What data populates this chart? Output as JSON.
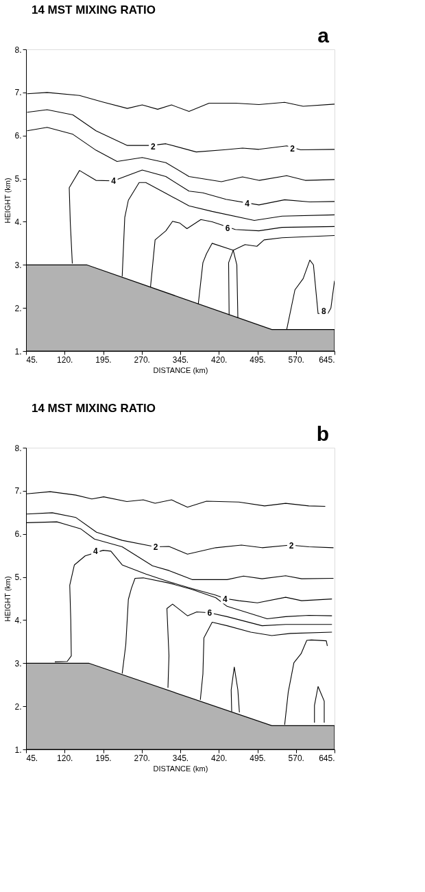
{
  "chart_data": [
    {
      "type": "line",
      "title": "14 MST  MIXING RATIO",
      "xlabel": "DISTANCE (km)",
      "ylabel": "HEIGHT (km)",
      "xlim": [
        45,
        645
      ],
      "ylim": [
        1,
        8
      ],
      "xticks": [
        {
          "value": 45,
          "label": "45."
        },
        {
          "value": 120,
          "label": "120."
        },
        {
          "value": 195,
          "label": "195."
        },
        {
          "value": 270,
          "label": "270."
        },
        {
          "value": 345,
          "label": "345."
        },
        {
          "value": 420,
          "label": "420."
        },
        {
          "value": 495,
          "label": "495."
        },
        {
          "value": 570,
          "label": "570."
        },
        {
          "value": 645,
          "label": "645."
        }
      ],
      "yticks": [
        {
          "value": 1,
          "label": "1."
        },
        {
          "value": 2,
          "label": "2."
        },
        {
          "value": 3,
          "label": "3."
        },
        {
          "value": 4,
          "label": "4."
        },
        {
          "value": 5,
          "label": "5."
        },
        {
          "value": 6,
          "label": "6."
        },
        {
          "value": 7,
          "label": "7."
        },
        {
          "value": 8,
          "label": "8."
        }
      ],
      "annotations": [
        "a",
        {
          "text": "2",
          "x": 292,
          "y": 5.74
        },
        {
          "text": "2",
          "x": 563,
          "y": 5.69
        },
        {
          "text": "4",
          "x": 215,
          "y": 4.95
        },
        {
          "text": "4",
          "x": 475,
          "y": 4.42
        },
        {
          "text": "6",
          "x": 437,
          "y": 3.84
        },
        {
          "text": "8",
          "x": 624,
          "y": 1.92
        }
      ],
      "series": [
        {
          "type": "area",
          "color": "#000000",
          "x": [
            45,
            163,
            523,
            645
          ],
          "values": [
            3.0,
            3.0,
            1.5,
            1.5
          ]
        },
        {
          "color": "#000000",
          "x": [
            47,
            86,
            149,
            194,
            242,
            271,
            301,
            328,
            362,
            401,
            453,
            498,
            548,
            584,
            645
          ],
          "values": [
            6.97,
            7.0,
            6.93,
            6.78,
            6.63,
            6.71,
            6.61,
            6.71,
            6.56,
            6.75,
            6.75,
            6.72,
            6.77,
            6.68,
            6.73
          ]
        },
        {
          "color": "#000000",
          "x": [
            47,
            86,
            136,
            181,
            242,
            289,
            317,
            376,
            430,
            466,
            498,
            552,
            579,
            645
          ],
          "values": [
            6.54,
            6.6,
            6.48,
            6.11,
            5.77,
            5.77,
            5.81,
            5.62,
            5.67,
            5.71,
            5.68,
            5.76,
            5.67,
            5.68
          ]
        },
        {
          "color": "#000000",
          "x": [
            47,
            86,
            136,
            181,
            222,
            271,
            317,
            362,
            425,
            466,
            498,
            552,
            588,
            645
          ],
          "values": [
            6.11,
            6.19,
            6.03,
            5.66,
            5.4,
            5.49,
            5.37,
            5.05,
            4.93,
            5.04,
            4.96,
            5.07,
            4.96,
            4.98
          ]
        },
        {
          "color": "#000000",
          "x": [
            135,
            131,
            129,
            149,
            181,
            215,
            271,
            317,
            362,
            389,
            434,
            498,
            548,
            597,
            645
          ],
          "values": [
            3.03,
            4.0,
            4.79,
            5.19,
            4.96,
            4.95,
            5.2,
            5.05,
            4.71,
            4.67,
            4.52,
            4.39,
            4.51,
            4.46,
            4.47
          ]
        },
        {
          "color": "#000000",
          "x": [
            232,
            237,
            244,
            265,
            278,
            317,
            362,
            407,
            489,
            543,
            645
          ],
          "values": [
            2.73,
            4.1,
            4.5,
            4.91,
            4.91,
            4.66,
            4.37,
            4.24,
            4.03,
            4.13,
            4.16
          ]
        },
        {
          "color": "#000000",
          "x": [
            287,
            296,
            317,
            330,
            344,
            358,
            385,
            407,
            452,
            498,
            543,
            645
          ],
          "values": [
            2.48,
            3.58,
            3.79,
            4.01,
            3.97,
            3.84,
            4.05,
            4.0,
            3.82,
            3.79,
            3.87,
            3.89
          ]
        },
        {
          "color": "#000000",
          "x": [
            380,
            389,
            396,
            407,
            448,
            471,
            494,
            508,
            543,
            645
          ],
          "values": [
            2.09,
            3.05,
            3.26,
            3.5,
            3.34,
            3.47,
            3.43,
            3.58,
            3.63,
            3.68
          ]
        },
        {
          "color": "#000000",
          "x": [
            440,
            439,
            448,
            455,
            457
          ],
          "values": [
            1.84,
            3.05,
            3.34,
            3.0,
            1.77
          ]
        },
        {
          "color": "#000000",
          "x": [
            552,
            568,
            584,
            597,
            604,
            613,
            632,
            638,
            645
          ],
          "values": [
            1.5,
            2.42,
            2.68,
            3.11,
            3.0,
            1.87,
            1.87,
            2.0,
            2.63
          ]
        }
      ]
    },
    {
      "type": "line",
      "title": "14 MST  MIXING RATIO",
      "xlabel": "DISTANCE (km)",
      "ylabel": "HEIGHT (km)",
      "xlim": [
        45,
        645
      ],
      "ylim": [
        1,
        8
      ],
      "xticks": [
        {
          "value": 45,
          "label": "45."
        },
        {
          "value": 120,
          "label": "120."
        },
        {
          "value": 195,
          "label": "195."
        },
        {
          "value": 270,
          "label": "270."
        },
        {
          "value": 345,
          "label": "345."
        },
        {
          "value": 420,
          "label": "420."
        },
        {
          "value": 495,
          "label": "495."
        },
        {
          "value": 570,
          "label": "570."
        },
        {
          "value": 645,
          "label": "645."
        }
      ],
      "yticks": [
        {
          "value": 1,
          "label": "1."
        },
        {
          "value": 2,
          "label": "2."
        },
        {
          "value": 3,
          "label": "3."
        },
        {
          "value": 4,
          "label": "4."
        },
        {
          "value": 5,
          "label": "5."
        },
        {
          "value": 6,
          "label": "6."
        },
        {
          "value": 7,
          "label": "7."
        },
        {
          "value": 8,
          "label": "8."
        }
      ],
      "annotations": [
        "b",
        {
          "text": "2",
          "x": 297,
          "y": 5.7
        },
        {
          "text": "2",
          "x": 561,
          "y": 5.73
        },
        {
          "text": "4",
          "x": 180,
          "y": 5.6
        },
        {
          "text": "4",
          "x": 432,
          "y": 4.48
        },
        {
          "text": "6",
          "x": 402,
          "y": 4.16
        }
      ],
      "series": [
        {
          "type": "area",
          "color": "#000000",
          "x": [
            45,
            167,
            523,
            645
          ],
          "values": [
            3.0,
            3.0,
            1.55,
            1.55
          ]
        },
        {
          "color": "#000000",
          "x": [
            46,
            92,
            142,
            173,
            196,
            241,
            273,
            296,
            328,
            359,
            396,
            459,
            509,
            550,
            595,
            627
          ],
          "values": [
            6.93,
            6.98,
            6.9,
            6.81,
            6.86,
            6.75,
            6.79,
            6.71,
            6.79,
            6.62,
            6.76,
            6.74,
            6.65,
            6.71,
            6.65,
            6.64
          ]
        },
        {
          "color": "#000000",
          "x": [
            46,
            96,
            142,
            182,
            232,
            296,
            323,
            359,
            414,
            464,
            504,
            559,
            595,
            643
          ],
          "values": [
            6.46,
            6.49,
            6.38,
            6.04,
            5.85,
            5.7,
            5.71,
            5.53,
            5.68,
            5.74,
            5.68,
            5.74,
            5.7,
            5.68
          ]
        },
        {
          "color": "#000000",
          "x": [
            46,
            105,
            151,
            178,
            232,
            291,
            323,
            368,
            436,
            468,
            504,
            550,
            581,
            643
          ],
          "values": [
            6.26,
            6.28,
            6.12,
            5.88,
            5.7,
            5.26,
            5.15,
            4.94,
            4.94,
            5.02,
            4.96,
            5.03,
            4.96,
            4.97
          ]
        },
        {
          "color": "#000000",
          "x": [
            101,
            125,
            133,
            132,
            130,
            139,
            160,
            195,
            210,
            232,
            278,
            323,
            368,
            414,
            432,
            459,
            495,
            550,
            581,
            640
          ],
          "values": [
            3.03,
            3.04,
            3.17,
            4.0,
            4.81,
            5.28,
            5.49,
            5.62,
            5.6,
            5.28,
            5.07,
            4.89,
            4.73,
            4.58,
            4.5,
            4.45,
            4.4,
            4.53,
            4.45,
            4.49
          ]
        },
        {
          "color": "#000000",
          "x": [
            232,
            239,
            244,
            250,
            257,
            273,
            323,
            368,
            414,
            436,
            514,
            550,
            595,
            640
          ],
          "values": [
            2.76,
            3.43,
            4.48,
            4.74,
            4.97,
            4.98,
            4.86,
            4.71,
            4.52,
            4.32,
            4.03,
            4.08,
            4.11,
            4.1
          ]
        },
        {
          "color": "#000000",
          "x": [
            321,
            323,
            319,
            330,
            359,
            377,
            402,
            436,
            504,
            550,
            640
          ],
          "values": [
            2.43,
            3.17,
            4.27,
            4.37,
            4.1,
            4.19,
            4.17,
            4.08,
            3.87,
            3.9,
            3.9
          ]
        },
        {
          "color": "#000000",
          "x": [
            384,
            389,
            391,
            407,
            436,
            482,
            523,
            559,
            640
          ],
          "values": [
            2.15,
            2.75,
            3.59,
            3.95,
            3.87,
            3.72,
            3.64,
            3.69,
            3.72
          ]
        },
        {
          "color": "#000000",
          "x": [
            445,
            444,
            450,
            457,
            460
          ],
          "values": [
            1.88,
            2.38,
            2.91,
            2.38,
            1.86
          ]
        },
        {
          "color": "#000000",
          "x": [
            548,
            555,
            566,
            580,
            591,
            600,
            629,
            631
          ],
          "values": [
            1.57,
            2.33,
            3.01,
            3.22,
            3.53,
            3.54,
            3.52,
            3.4
          ]
        },
        {
          "color": "#000000",
          "x": [
            606,
            606,
            613,
            625,
            625
          ],
          "values": [
            1.62,
            2.02,
            2.46,
            2.12,
            1.62
          ]
        }
      ]
    }
  ]
}
